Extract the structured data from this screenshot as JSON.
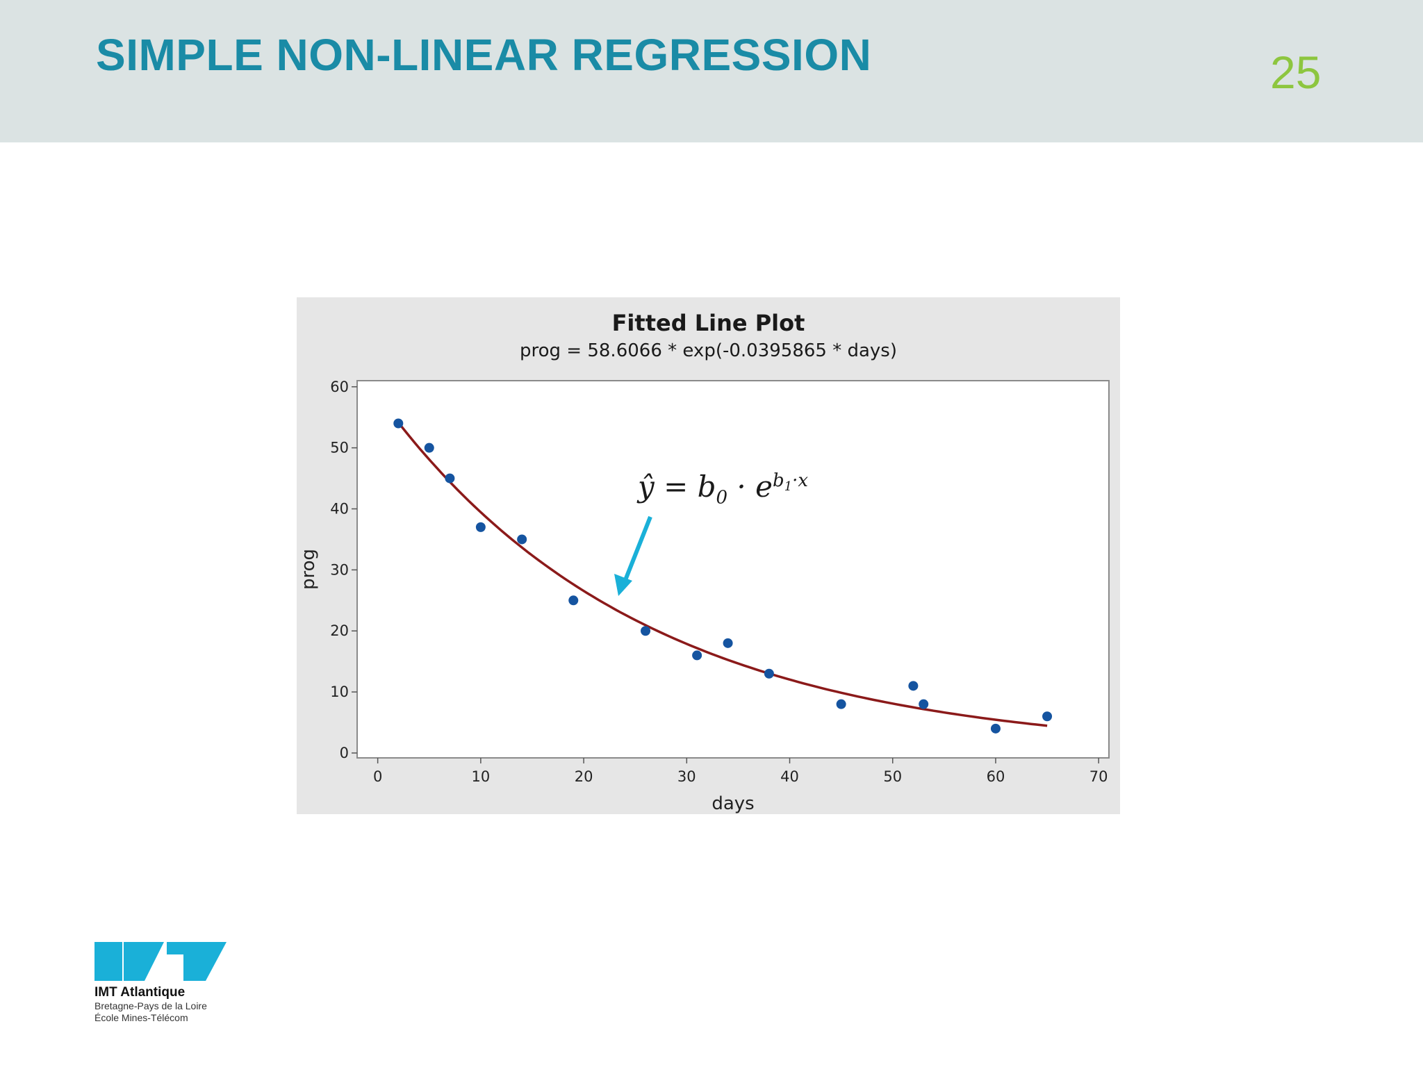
{
  "slide": {
    "title": "SIMPLE NON-LINEAR REGRESSION",
    "page_number": "25",
    "title_color": "#1a8ba6",
    "page_number_color": "#8dc63f",
    "header_bg": "#dbe3e3"
  },
  "formula_annotation": {
    "lhs": "ŷ",
    "rhs_prefix": "= b",
    "sub0": "0",
    "dot_e": " · e",
    "sup_b": "b",
    "sup_sub1": "1",
    "sup_x": "·x",
    "arrow_color": "#1ab0d8"
  },
  "chart_data": {
    "type": "scatter",
    "title": "Fitted Line Plot",
    "subtitle": "prog = 58.6066 * exp(-0.0395865 * days)",
    "xlabel": "days",
    "ylabel": "prog",
    "xlim": [
      -2,
      71
    ],
    "ylim": [
      -0.8,
      61
    ],
    "xticks": [
      0,
      10,
      20,
      30,
      40,
      50,
      60,
      70
    ],
    "yticks": [
      0,
      10,
      20,
      30,
      40,
      50,
      60
    ],
    "grid": false,
    "points": [
      [
        2,
        54
      ],
      [
        5,
        50
      ],
      [
        7,
        45
      ],
      [
        10,
        37
      ],
      [
        14,
        35
      ],
      [
        19,
        25
      ],
      [
        26,
        20
      ],
      [
        31,
        16
      ],
      [
        34,
        18
      ],
      [
        38,
        13
      ],
      [
        45,
        8
      ],
      [
        52,
        11
      ],
      [
        53,
        8
      ],
      [
        60,
        4
      ],
      [
        65,
        6
      ]
    ],
    "fit": {
      "b0": 58.6066,
      "b1": -0.0395865,
      "x_from": 2,
      "x_to": 65
    },
    "point_color": "#1554a0",
    "line_color": "#8b1a1a"
  },
  "logo": {
    "name": "IMT Atlantique",
    "line1": "Bretagne-Pays de la Loire",
    "line2": "École Mines-Télécom",
    "color": "#1ab0d8"
  }
}
